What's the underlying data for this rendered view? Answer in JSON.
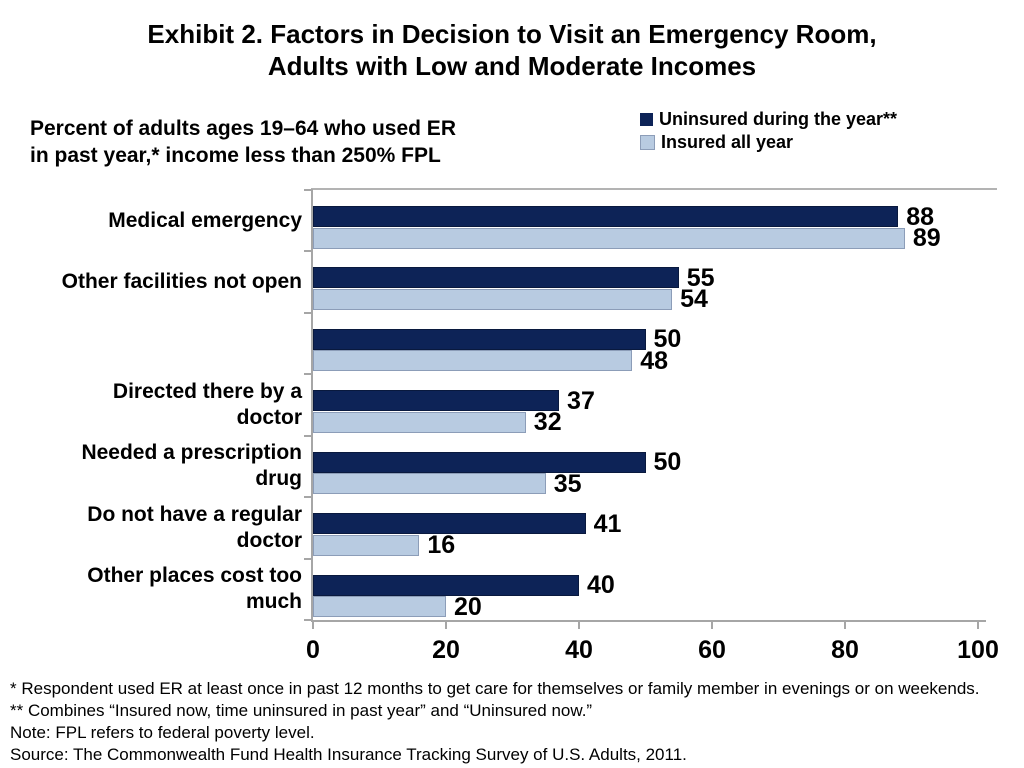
{
  "title": {
    "line1": "Exhibit 2. Factors in Decision to Visit an Emergency Room,",
    "line2": "Adults with Low and Moderate Incomes"
  },
  "subtitle": {
    "line1": "Percent of adults ages 19–64 who used ER",
    "line2": "in past year,* income less than 250% FPL"
  },
  "legend": {
    "items": [
      {
        "label": "Uninsured during the year**",
        "color": "#0d2357"
      },
      {
        "label": "Insured all year",
        "color": "#b8cbe1"
      }
    ]
  },
  "chart_data": {
    "type": "bar",
    "orientation": "horizontal",
    "title": "Exhibit 2. Factors in Decision to Visit an Emergency Room, Adults with Low and Moderate Incomes",
    "xlabel": "",
    "ylabel": "",
    "xlim": [
      0,
      100
    ],
    "x_ticks": [
      0,
      20,
      40,
      60,
      80,
      100
    ],
    "grid": false,
    "legend_position": "top-right",
    "categories": [
      "Medical emergency",
      "Other facilities not open",
      "",
      "Directed there by a\ndoctor",
      "Needed a prescription\ndrug",
      "Do not have a regular\ndoctor",
      "Other places cost too\nmuch"
    ],
    "series": [
      {
        "name": "Uninsured during the year**",
        "color": "#0d2357",
        "values": [
          88,
          55,
          50,
          37,
          50,
          41,
          40
        ]
      },
      {
        "name": "Insured all year",
        "color": "#b8cbe1",
        "values": [
          89,
          54,
          48,
          32,
          35,
          16,
          20
        ]
      }
    ]
  },
  "footnotes": {
    "line1": "* Respondent used ER at least once in past 12 months to get care for themselves or family member in evenings or on weekends.",
    "line2": "** Combines “Insured now, time uninsured in past year” and “Uninsured now.”",
    "line3": "Note: FPL refers to federal poverty level.",
    "line4": "Source: The Commonwealth Fund Health Insurance Tracking Survey of U.S. Adults, 2011."
  },
  "colors": {
    "uninsured_fill": "#0d2357",
    "uninsured_border": "#09193e",
    "insured_fill": "#b8cbe1",
    "insured_border": "#8c9db8",
    "axis": "#a6a6a6"
  }
}
